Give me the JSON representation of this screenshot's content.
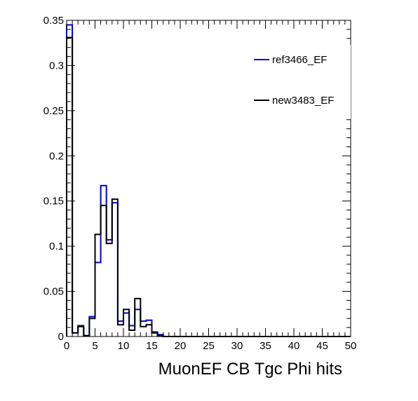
{
  "chart_data": {
    "type": "histogram",
    "title": "",
    "xlabel": "MuonEF CB Tgc Phi hits",
    "ylabel": "",
    "xlim": [
      0,
      50
    ],
    "ylim": [
      0,
      0.35
    ],
    "bin_width": 1,
    "x_ticks": [
      0,
      5,
      10,
      15,
      20,
      25,
      30,
      35,
      40,
      45,
      50
    ],
    "y_ticks": [
      0,
      0.05,
      0.1,
      0.15,
      0.2,
      0.25,
      0.3,
      0.35
    ],
    "x_tick_labels": [
      "0",
      "5",
      "10",
      "15",
      "20",
      "25",
      "30",
      "35",
      "40",
      "45",
      "50"
    ],
    "y_tick_labels": [
      "0",
      "0.05",
      "0.1",
      "0.15",
      "0.2",
      "0.25",
      "0.3",
      "0.35"
    ],
    "grid": false,
    "legend_position": "top-right",
    "series": [
      {
        "name": "ref3466_EF",
        "color": "#0000cc",
        "values": [
          0.345,
          0.004,
          0.012,
          0.001,
          0.022,
          0.082,
          0.167,
          0.107,
          0.148,
          0.017,
          0.026,
          0.012,
          0.03,
          0.017,
          0.018,
          0.005,
          0.002,
          0,
          0,
          0,
          0,
          0,
          0,
          0,
          0,
          0,
          0,
          0,
          0,
          0,
          0,
          0,
          0,
          0,
          0,
          0,
          0,
          0,
          0,
          0,
          0,
          0,
          0,
          0,
          0,
          0,
          0,
          0,
          0,
          0
        ]
      },
      {
        "name": "new3483_EF",
        "color": "#000000",
        "values": [
          0.331,
          0.004,
          0.011,
          0.001,
          0.02,
          0.113,
          0.145,
          0.103,
          0.152,
          0.013,
          0.03,
          0.007,
          0.042,
          0.011,
          0.013,
          0.004,
          0.001,
          0,
          0,
          0,
          0,
          0,
          0,
          0,
          0,
          0,
          0,
          0,
          0,
          0,
          0,
          0,
          0,
          0,
          0,
          0,
          0,
          0,
          0,
          0,
          0,
          0,
          0,
          0,
          0,
          0,
          0,
          0,
          0,
          0
        ]
      }
    ]
  }
}
